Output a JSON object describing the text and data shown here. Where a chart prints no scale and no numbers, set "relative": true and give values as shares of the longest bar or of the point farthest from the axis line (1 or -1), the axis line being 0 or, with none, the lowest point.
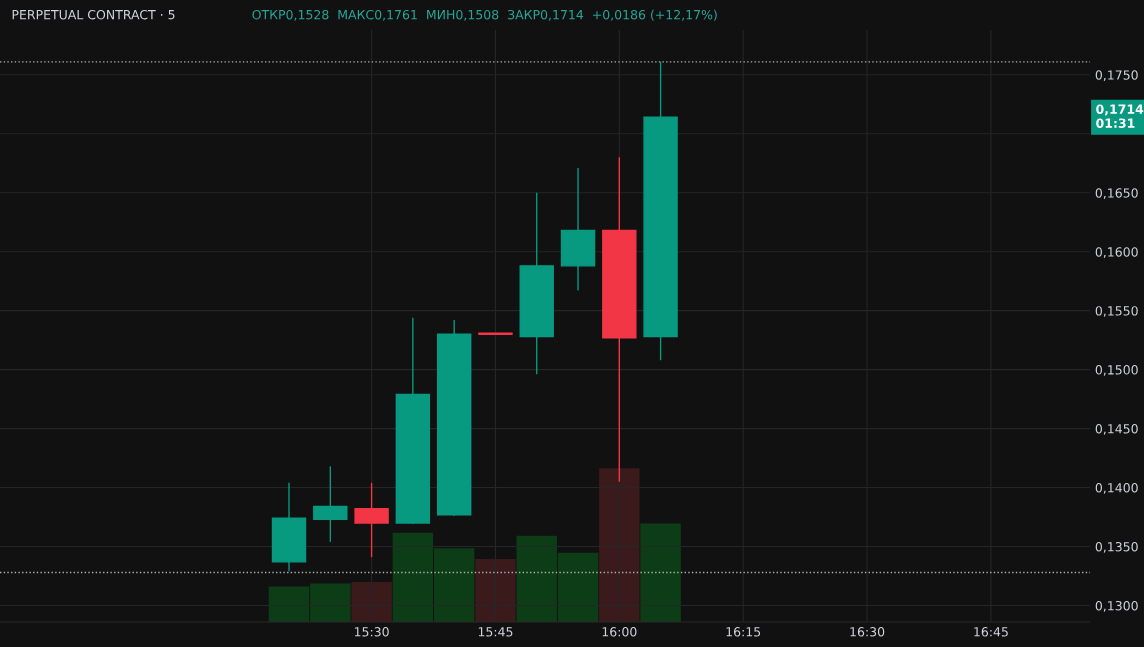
{
  "chart_data": [
    {
      "type": "candlestick",
      "title": "PERPETUAL CONTRACT · 5",
      "subtitle": "ОТКР0,1528  МАКС0,1761  МИН0,1508  ЗАКР0,1714  +0,0186 (+12,17%)",
      "x": [
        15.3333,
        15.4167,
        15.5,
        15.5833,
        15.6667,
        15.75,
        15.8333,
        15.9167,
        16.0,
        16.0833
      ],
      "ohlc": [
        [
          0.1337,
          0.1404,
          0.1329,
          0.1374
        ],
        [
          0.1373,
          0.1418,
          0.1354,
          0.1384
        ],
        [
          0.1382,
          0.1404,
          0.1341,
          0.137
        ],
        [
          0.137,
          0.1544,
          0.1369,
          0.1479
        ],
        [
          0.1377,
          0.1542,
          0.1376,
          0.153
        ],
        [
          0.1531,
          0.1531,
          0.153,
          0.153
        ],
        [
          0.1528,
          0.165,
          0.1496,
          0.1588
        ],
        [
          0.1588,
          0.1671,
          0.1567,
          0.1618
        ],
        [
          0.1618,
          0.168,
          0.1405,
          0.1527
        ],
        [
          0.1528,
          0.1761,
          0.1508,
          0.1714
        ]
      ],
      "colors": [
        "#089981",
        "#089981",
        "#f23645",
        "#089981",
        "#089981",
        "#f23645",
        "#089981",
        "#089981",
        "#f23645",
        "#089981"
      ],
      "xlim": [
        14.75,
        16.95
      ],
      "xticks": [
        {
          "value": 15.5,
          "label": "15:30"
        },
        {
          "value": 15.75,
          "label": "15:45"
        },
        {
          "value": 16.0,
          "label": "16:00"
        },
        {
          "value": 16.25,
          "label": "16:15"
        },
        {
          "value": 16.5,
          "label": "16:30"
        },
        {
          "value": 16.75,
          "label": "16:45"
        }
      ],
      "ylim": [
        0.1286,
        0.1788
      ],
      "yticks": [
        {
          "value": 0.13,
          "label": "0,1300"
        },
        {
          "value": 0.135,
          "label": "0,1350"
        },
        {
          "value": 0.14,
          "label": "0,1400"
        },
        {
          "value": 0.145,
          "label": "0,1450"
        },
        {
          "value": 0.15,
          "label": "0,1500"
        },
        {
          "value": 0.155,
          "label": "0,1550"
        },
        {
          "value": 0.16,
          "label": "0,1600"
        },
        {
          "value": 0.165,
          "label": "0,1650"
        },
        {
          "value": 0.17,
          "label": null
        },
        {
          "value": 0.175,
          "label": "0,1750"
        }
      ],
      "ref_lines": [
        {
          "axis": "y",
          "value": 0.1761,
          "color": "#b0b0b0",
          "line_style": "dotted"
        },
        {
          "axis": "y",
          "value": 0.1328,
          "color": "#b0b0b0",
          "line_style": "dotted"
        }
      ],
      "annotations": [
        "0,1714\n01:31"
      ],
      "grid": true
    },
    {
      "type": "bar",
      "relative": true,
      "x": [
        15.3333,
        15.4167,
        15.5,
        15.5833,
        15.6667,
        15.75,
        15.8333,
        15.9167,
        16.0,
        16.0833
      ],
      "xlim": [
        14.75,
        16.95
      ],
      "values": [
        0.23,
        0.25,
        0.26,
        0.58,
        0.48,
        0.41,
        0.56,
        0.45,
        1,
        0.64
      ],
      "colors": [
        "#0d3d17",
        "#0d3d17",
        "#3a1a1a",
        "#0d3d17",
        "#0d3d17",
        "#3a1a1a",
        "#0d3d17",
        "#0d3d17",
        "#3a1a1a",
        "#0d3d17"
      ]
    }
  ]
}
